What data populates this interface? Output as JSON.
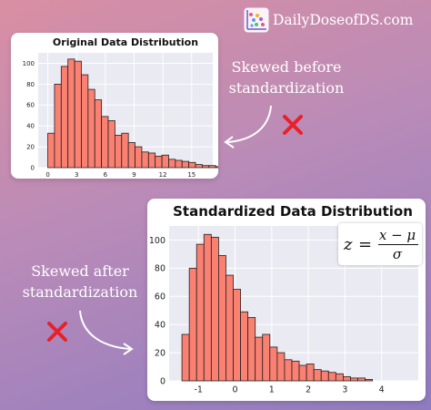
{
  "brand": {
    "name": "DailyDoseofDS.com",
    "logo_icon": "dot-scatter-logo-icon"
  },
  "annotations": {
    "before": {
      "line1": "Skewed before",
      "line2": "standardization"
    },
    "after": {
      "line1": "Skewed after",
      "line2": "standardization"
    },
    "mark_icon": "red-x-icon",
    "arrow_icon": "curved-arrow-icon"
  },
  "formula": {
    "lhs": "z",
    "eq": "=",
    "numerator": "x − μ",
    "denominator": "σ"
  },
  "colors": {
    "bar_fill": "#fa8072",
    "bar_edge": "#222222",
    "plot_bg": "#eaeaf2",
    "grid": "#ffffff",
    "mark": "#e8202a"
  },
  "chart_data": [
    {
      "type": "bar",
      "title": "Original Data Distribution",
      "xlabel": "",
      "ylabel": "",
      "xlim": [
        -1,
        17.2
      ],
      "ylim": [
        0,
        110
      ],
      "xticks": [
        "0",
        "3",
        "6",
        "9",
        "12",
        "15"
      ],
      "yticks": [
        "0",
        "20",
        "40",
        "60",
        "80",
        "100"
      ],
      "grid": true,
      "legend": "none",
      "bin_start": 0,
      "bin_width": 0.7,
      "values": [
        33,
        80,
        97,
        104,
        102,
        89,
        75,
        65,
        49,
        45,
        31,
        33,
        24,
        20,
        15,
        14,
        11,
        12,
        8,
        7,
        6,
        5,
        3,
        2,
        2,
        1
      ]
    },
    {
      "type": "bar",
      "title": "Standardized Data Distribution",
      "xlabel": "",
      "ylabel": "",
      "xlim": [
        -1.8,
        5.0
      ],
      "ylim": [
        0,
        110
      ],
      "xticks": [
        "-1",
        "0",
        "1",
        "2",
        "3",
        "4"
      ],
      "yticks": [
        "0",
        "20",
        "40",
        "60",
        "80",
        "100"
      ],
      "grid": true,
      "legend": "none",
      "bin_start": -1.45,
      "bin_width": 0.2,
      "values": [
        33,
        80,
        97,
        104,
        102,
        89,
        75,
        65,
        49,
        45,
        31,
        33,
        24,
        20,
        15,
        14,
        11,
        12,
        8,
        7,
        6,
        5,
        3,
        2,
        2,
        1
      ]
    }
  ]
}
